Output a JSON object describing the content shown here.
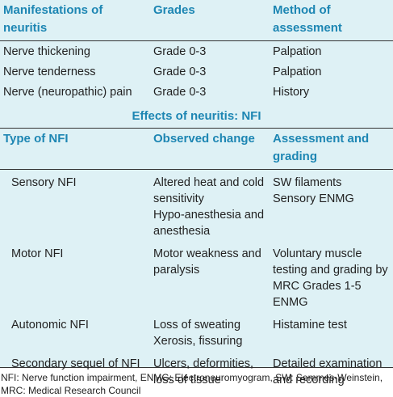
{
  "table": {
    "header": [
      "Manifestations of neuritis",
      "Grades",
      "Method of assessment"
    ],
    "rows": [
      [
        "Nerve thickening",
        "Grade 0-3",
        "Palpation"
      ],
      [
        "Nerve tenderness",
        "Grade 0-3",
        "Palpation"
      ],
      [
        "Nerve (neuropathic) pain",
        "Grade 0-3",
        "History"
      ]
    ],
    "section_title": "Effects of neuritis: NFI",
    "section_header": [
      "Type of NFI",
      "Observed change",
      "Assessment and grading"
    ],
    "section_rows": [
      [
        [
          "Sensory NFI"
        ],
        [
          "Altered heat and cold sensitivity",
          "Hypo-anesthesia and anesthesia"
        ],
        [
          "SW filaments",
          "Sensory ENMG"
        ]
      ],
      [
        [
          "Motor NFI"
        ],
        [
          "Motor weakness and paralysis"
        ],
        [
          "Voluntary muscle testing and grading by MRC Grades 1-5",
          "ENMG"
        ]
      ],
      [
        [
          "Autonomic NFI"
        ],
        [
          "Loss of sweating",
          "Xerosis, fissuring"
        ],
        [
          "Histamine test"
        ]
      ],
      [
        [
          "Secondary sequel of NFI"
        ],
        [
          "Ulcers, deformities, loss of tissue"
        ],
        [
          "Detailed examination and recording"
        ]
      ]
    ]
  },
  "footnote": "NFI: Nerve function impairment, ENMG: Electroneuromyogram, SW: Semmes-Weinstein, MRC: Medical Research Council"
}
